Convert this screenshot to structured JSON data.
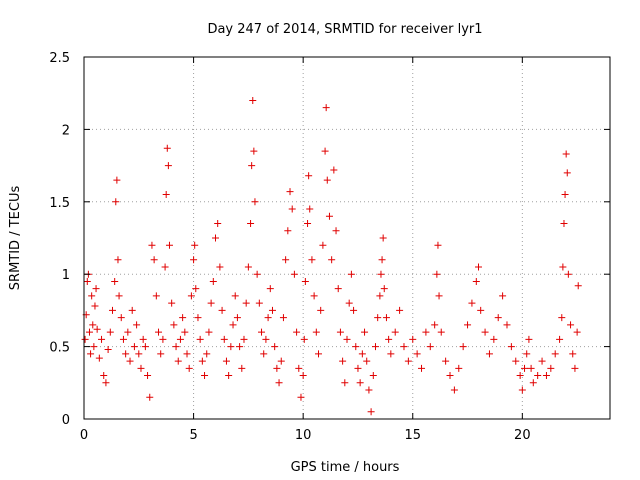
{
  "chart_data": {
    "type": "scatter",
    "title": "Day 247 of 2014, SRMTID for receiver lyr1",
    "xlabel": "GPS time / hours",
    "ylabel": "SRMTID / TECUs",
    "xlim": [
      0,
      24
    ],
    "ylim": [
      0,
      2.5
    ],
    "xticks": [
      0,
      5,
      10,
      15,
      20
    ],
    "xtick_labels": [
      "0",
      "5",
      "10",
      "15",
      "20"
    ],
    "yticks": [
      0,
      0.5,
      1,
      1.5,
      2,
      2.5
    ],
    "ytick_labels": [
      "0",
      "0.5",
      "1",
      "1.5",
      "2",
      "2.5"
    ],
    "grid": true,
    "marker": "+",
    "color": "#e00000",
    "series": [
      {
        "name": "lyr1",
        "points": [
          [
            0.05,
            0.55
          ],
          [
            0.1,
            0.72
          ],
          [
            0.15,
            0.95
          ],
          [
            0.2,
            1.0
          ],
          [
            0.25,
            0.6
          ],
          [
            0.3,
            0.45
          ],
          [
            0.35,
            0.85
          ],
          [
            0.4,
            0.65
          ],
          [
            0.45,
            0.5
          ],
          [
            0.5,
            0.78
          ],
          [
            0.55,
            0.9
          ],
          [
            0.6,
            0.62
          ],
          [
            0.7,
            0.42
          ],
          [
            0.8,
            0.55
          ],
          [
            0.9,
            0.3
          ],
          [
            1.0,
            0.25
          ],
          [
            1.1,
            0.48
          ],
          [
            1.2,
            0.6
          ],
          [
            1.3,
            0.75
          ],
          [
            1.4,
            0.95
          ],
          [
            1.45,
            1.5
          ],
          [
            1.5,
            1.65
          ],
          [
            1.55,
            1.1
          ],
          [
            1.6,
            0.85
          ],
          [
            1.7,
            0.7
          ],
          [
            1.8,
            0.55
          ],
          [
            1.9,
            0.45
          ],
          [
            2.0,
            0.6
          ],
          [
            2.1,
            0.4
          ],
          [
            2.2,
            0.75
          ],
          [
            2.3,
            0.5
          ],
          [
            2.4,
            0.65
          ],
          [
            2.5,
            0.45
          ],
          [
            2.6,
            0.35
          ],
          [
            2.7,
            0.55
          ],
          [
            2.8,
            0.5
          ],
          [
            2.9,
            0.3
          ],
          [
            3.0,
            0.15
          ],
          [
            3.1,
            1.2
          ],
          [
            3.2,
            1.1
          ],
          [
            3.3,
            0.85
          ],
          [
            3.4,
            0.6
          ],
          [
            3.5,
            0.45
          ],
          [
            3.6,
            0.55
          ],
          [
            3.7,
            1.05
          ],
          [
            3.75,
            1.55
          ],
          [
            3.8,
            1.87
          ],
          [
            3.85,
            1.75
          ],
          [
            3.9,
            1.2
          ],
          [
            4.0,
            0.8
          ],
          [
            4.1,
            0.65
          ],
          [
            4.2,
            0.5
          ],
          [
            4.3,
            0.4
          ],
          [
            4.4,
            0.55
          ],
          [
            4.5,
            0.7
          ],
          [
            4.6,
            0.6
          ],
          [
            4.7,
            0.45
          ],
          [
            4.8,
            0.35
          ],
          [
            4.9,
            0.85
          ],
          [
            5.0,
            1.1
          ],
          [
            5.05,
            1.2
          ],
          [
            5.1,
            0.9
          ],
          [
            5.2,
            0.7
          ],
          [
            5.3,
            0.55
          ],
          [
            5.4,
            0.4
          ],
          [
            5.5,
            0.3
          ],
          [
            5.6,
            0.45
          ],
          [
            5.7,
            0.6
          ],
          [
            5.8,
            0.8
          ],
          [
            5.9,
            0.95
          ],
          [
            6.0,
            1.25
          ],
          [
            6.1,
            1.35
          ],
          [
            6.2,
            1.05
          ],
          [
            6.3,
            0.75
          ],
          [
            6.4,
            0.55
          ],
          [
            6.5,
            0.4
          ],
          [
            6.6,
            0.3
          ],
          [
            6.7,
            0.5
          ],
          [
            6.8,
            0.65
          ],
          [
            6.9,
            0.85
          ],
          [
            7.0,
            0.7
          ],
          [
            7.1,
            0.5
          ],
          [
            7.2,
            0.35
          ],
          [
            7.3,
            0.55
          ],
          [
            7.4,
            0.8
          ],
          [
            7.5,
            1.05
          ],
          [
            7.6,
            1.35
          ],
          [
            7.65,
            1.75
          ],
          [
            7.7,
            2.2
          ],
          [
            7.75,
            1.85
          ],
          [
            7.8,
            1.5
          ],
          [
            7.9,
            1.0
          ],
          [
            8.0,
            0.8
          ],
          [
            8.1,
            0.6
          ],
          [
            8.2,
            0.45
          ],
          [
            8.3,
            0.55
          ],
          [
            8.4,
            0.7
          ],
          [
            8.5,
            0.9
          ],
          [
            8.6,
            0.75
          ],
          [
            8.7,
            0.5
          ],
          [
            8.8,
            0.35
          ],
          [
            8.9,
            0.25
          ],
          [
            9.0,
            0.4
          ],
          [
            9.1,
            0.7
          ],
          [
            9.2,
            1.1
          ],
          [
            9.3,
            1.3
          ],
          [
            9.4,
            1.57
          ],
          [
            9.5,
            1.45
          ],
          [
            9.6,
            1.0
          ],
          [
            9.7,
            0.6
          ],
          [
            9.8,
            0.35
          ],
          [
            9.9,
            0.15
          ],
          [
            10.0,
            0.3
          ],
          [
            10.05,
            0.55
          ],
          [
            10.1,
            0.95
          ],
          [
            10.2,
            1.35
          ],
          [
            10.25,
            1.68
          ],
          [
            10.3,
            1.45
          ],
          [
            10.4,
            1.1
          ],
          [
            10.5,
            0.85
          ],
          [
            10.6,
            0.6
          ],
          [
            10.7,
            0.45
          ],
          [
            10.8,
            0.75
          ],
          [
            10.9,
            1.2
          ],
          [
            11.0,
            1.85
          ],
          [
            11.05,
            2.15
          ],
          [
            11.1,
            1.65
          ],
          [
            11.2,
            1.4
          ],
          [
            11.3,
            1.1
          ],
          [
            11.4,
            1.72
          ],
          [
            11.5,
            1.3
          ],
          [
            11.6,
            0.9
          ],
          [
            11.7,
            0.6
          ],
          [
            11.8,
            0.4
          ],
          [
            11.9,
            0.25
          ],
          [
            12.0,
            0.55
          ],
          [
            12.1,
            0.8
          ],
          [
            12.2,
            1.0
          ],
          [
            12.3,
            0.75
          ],
          [
            12.4,
            0.5
          ],
          [
            12.5,
            0.35
          ],
          [
            12.6,
            0.25
          ],
          [
            12.7,
            0.45
          ],
          [
            12.8,
            0.6
          ],
          [
            12.9,
            0.4
          ],
          [
            13.0,
            0.2
          ],
          [
            13.1,
            0.05
          ],
          [
            13.2,
            0.3
          ],
          [
            13.3,
            0.5
          ],
          [
            13.4,
            0.7
          ],
          [
            13.5,
            0.85
          ],
          [
            13.55,
            1.0
          ],
          [
            13.6,
            1.1
          ],
          [
            13.65,
            1.25
          ],
          [
            13.7,
            0.9
          ],
          [
            13.8,
            0.7
          ],
          [
            13.9,
            0.55
          ],
          [
            14.0,
            0.45
          ],
          [
            14.2,
            0.6
          ],
          [
            14.4,
            0.75
          ],
          [
            14.6,
            0.5
          ],
          [
            14.8,
            0.4
          ],
          [
            15.0,
            0.55
          ],
          [
            15.2,
            0.45
          ],
          [
            15.4,
            0.35
          ],
          [
            15.6,
            0.6
          ],
          [
            15.8,
            0.5
          ],
          [
            16.0,
            0.65
          ],
          [
            16.1,
            1.0
          ],
          [
            16.15,
            1.2
          ],
          [
            16.2,
            0.85
          ],
          [
            16.3,
            0.6
          ],
          [
            16.5,
            0.4
          ],
          [
            16.7,
            0.3
          ],
          [
            16.9,
            0.2
          ],
          [
            17.1,
            0.35
          ],
          [
            17.3,
            0.5
          ],
          [
            17.5,
            0.65
          ],
          [
            17.7,
            0.8
          ],
          [
            17.9,
            0.95
          ],
          [
            18.0,
            1.05
          ],
          [
            18.1,
            0.75
          ],
          [
            18.3,
            0.6
          ],
          [
            18.5,
            0.45
          ],
          [
            18.7,
            0.55
          ],
          [
            18.9,
            0.7
          ],
          [
            19.1,
            0.85
          ],
          [
            19.3,
            0.65
          ],
          [
            19.5,
            0.5
          ],
          [
            19.7,
            0.4
          ],
          [
            19.9,
            0.3
          ],
          [
            20.0,
            0.2
          ],
          [
            20.1,
            0.35
          ],
          [
            20.2,
            0.45
          ],
          [
            20.3,
            0.55
          ],
          [
            20.4,
            0.35
          ],
          [
            20.5,
            0.25
          ],
          [
            20.7,
            0.3
          ],
          [
            20.9,
            0.4
          ],
          [
            21.1,
            0.3
          ],
          [
            21.3,
            0.35
          ],
          [
            21.5,
            0.45
          ],
          [
            21.7,
            0.55
          ],
          [
            21.8,
            0.7
          ],
          [
            21.85,
            1.05
          ],
          [
            21.9,
            1.35
          ],
          [
            21.95,
            1.55
          ],
          [
            22.0,
            1.83
          ],
          [
            22.05,
            1.7
          ],
          [
            22.1,
            1.0
          ],
          [
            22.2,
            0.65
          ],
          [
            22.3,
            0.45
          ],
          [
            22.4,
            0.35
          ],
          [
            22.5,
            0.6
          ],
          [
            22.55,
            0.92
          ]
        ]
      }
    ]
  }
}
